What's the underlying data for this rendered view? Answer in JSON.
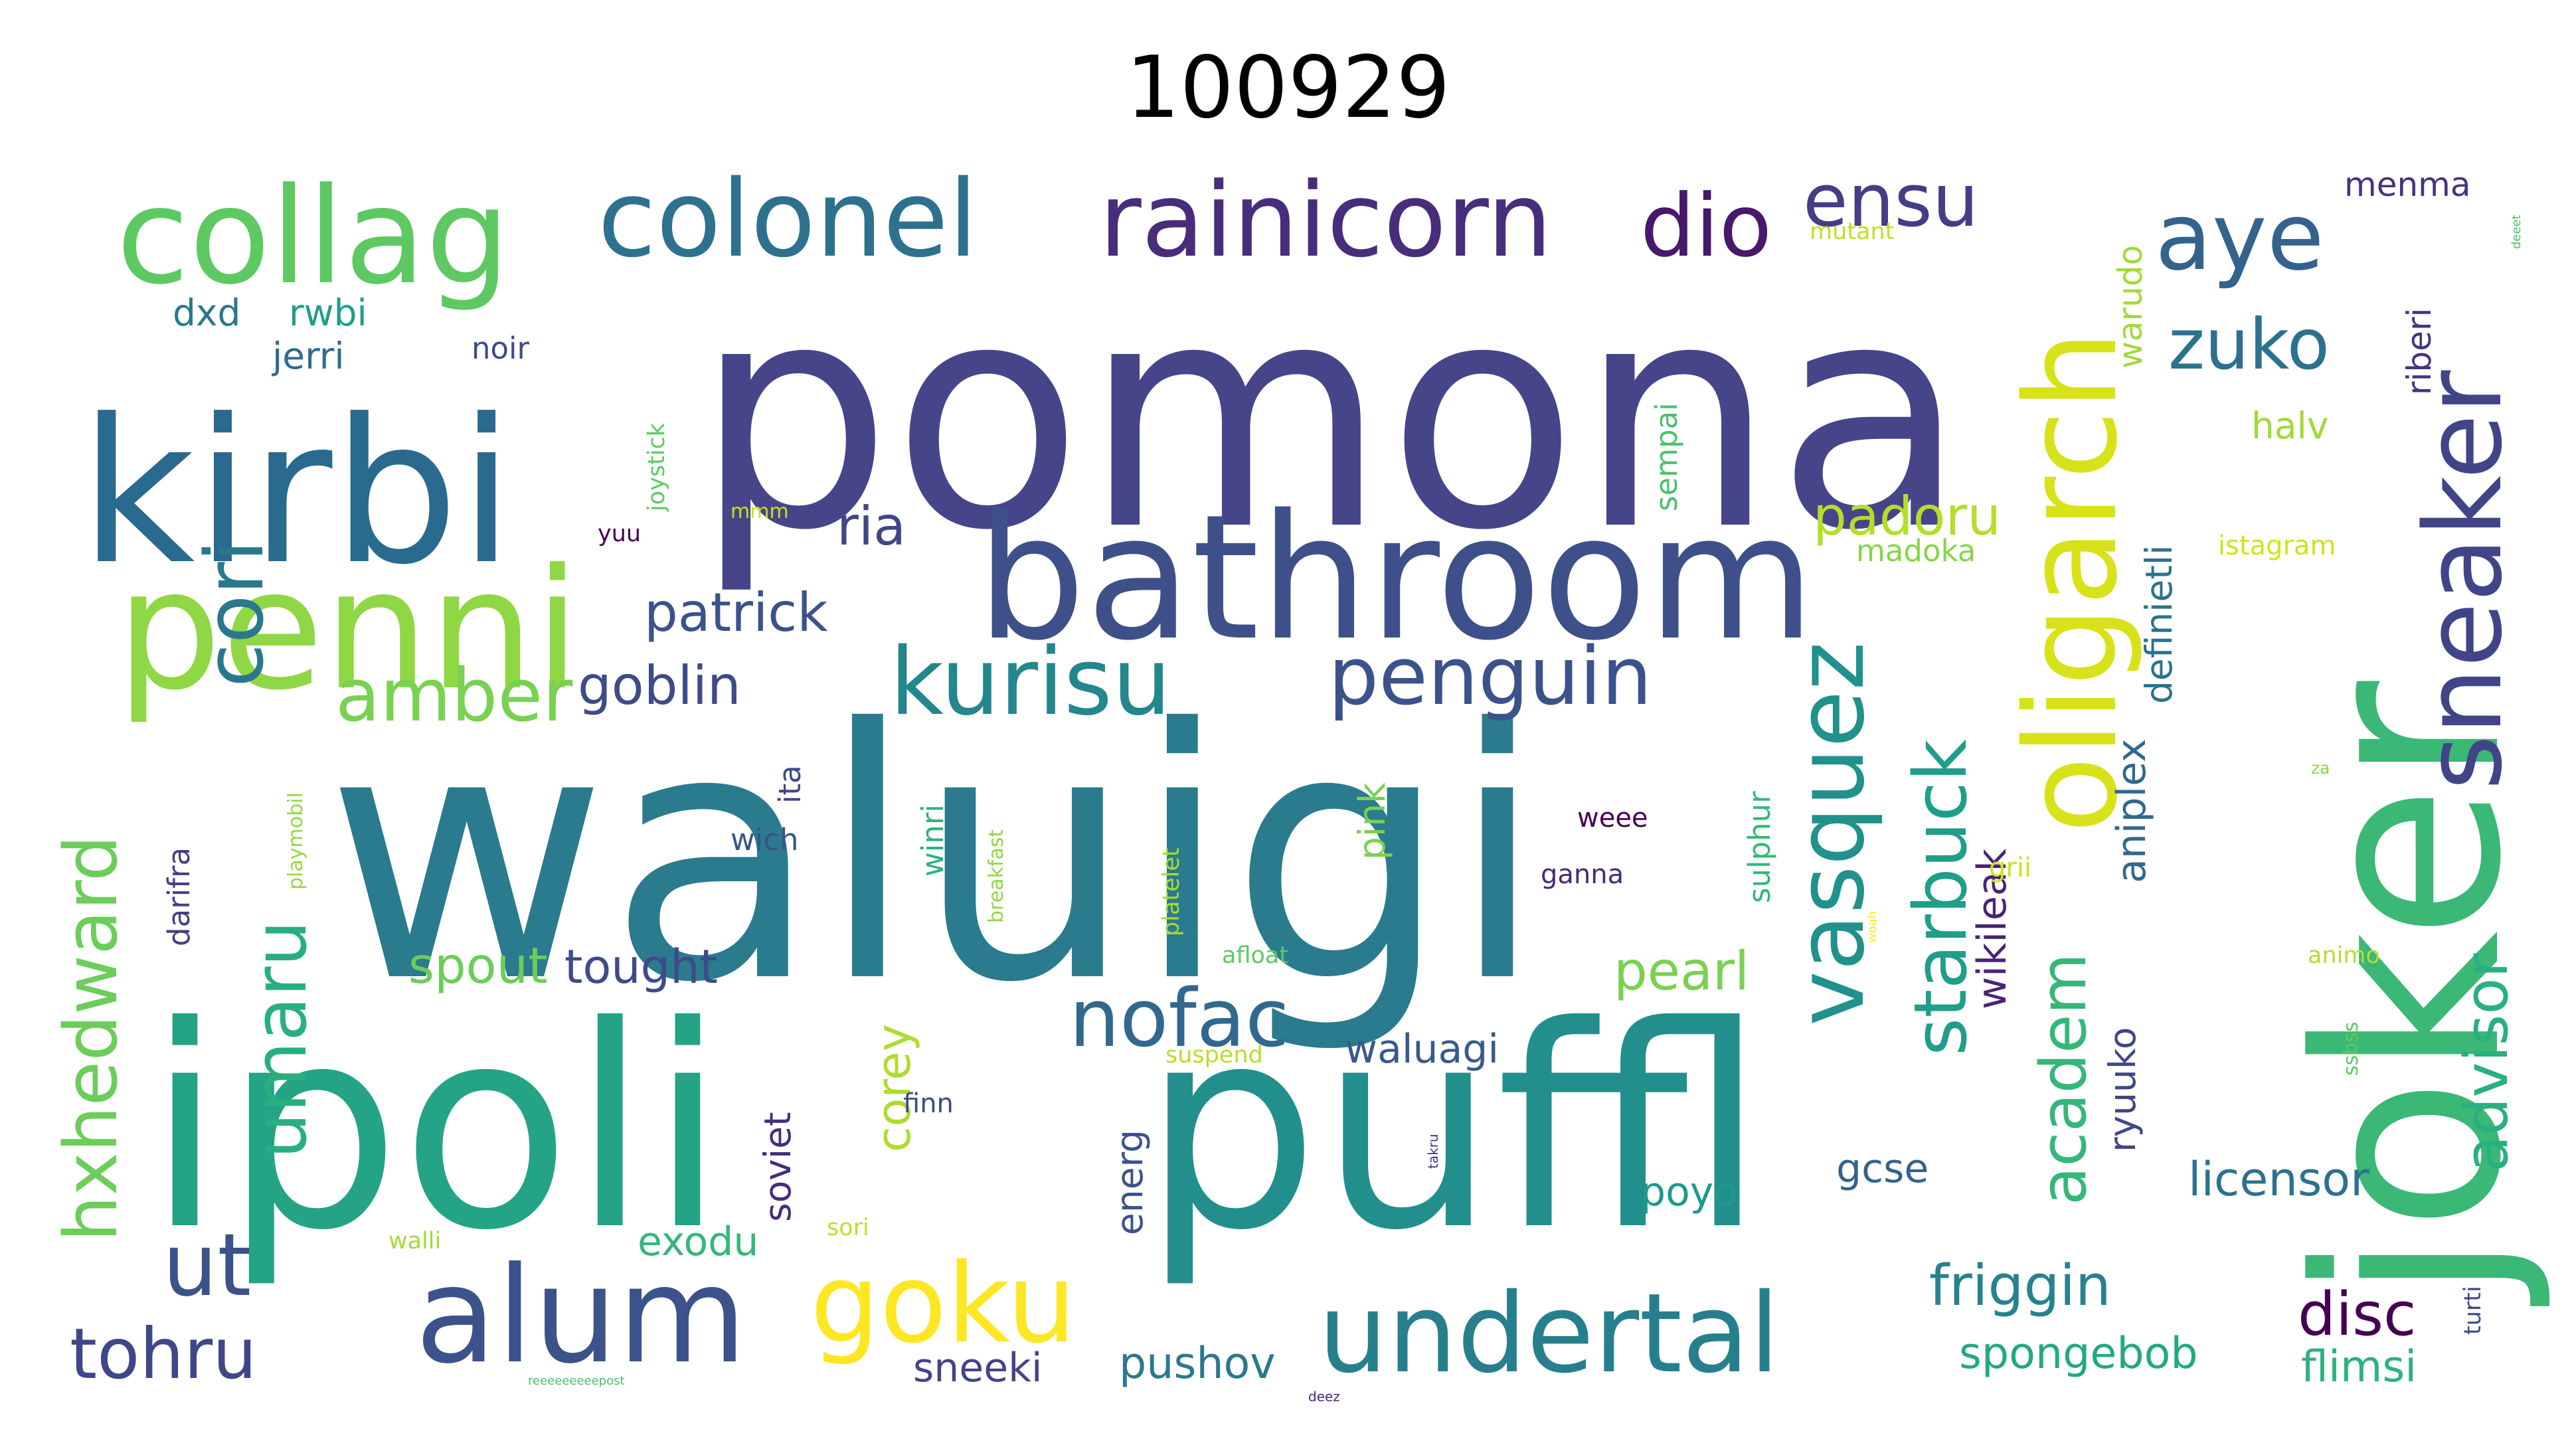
{
  "title": "100929",
  "colors": {
    "background": "#ffffff",
    "palette": [
      "#440154",
      "#46327e",
      "#365c8d",
      "#277f8e",
      "#1fa187",
      "#4ac16d",
      "#a0da39",
      "#fde725"
    ]
  },
  "words": [
    {
      "id": "pomona",
      "text": "pomona",
      "color": "#46458a"
    },
    {
      "id": "waluigi",
      "text": "waluigi",
      "color": "#2a7b8e"
    },
    {
      "id": "ipoli",
      "text": "ipoli",
      "color": "#25a386"
    },
    {
      "id": "puffl",
      "text": "puffl",
      "color": "#238f8c"
    },
    {
      "id": "joker",
      "text": "joker",
      "color": "#3bb776"
    },
    {
      "id": "kirbi",
      "text": "kirbi",
      "color": "#2a6a8e"
    },
    {
      "id": "bathroom",
      "text": "bathroom",
      "color": "#3e5089"
    },
    {
      "id": "penni",
      "text": "penni",
      "color": "#8fd744"
    },
    {
      "id": "collag",
      "text": "collag",
      "color": "#5ec962"
    },
    {
      "id": "colonel",
      "text": "colonel",
      "color": "#2d718e"
    },
    {
      "id": "rainicorn",
      "text": "rainicorn",
      "color": "#472d7b"
    },
    {
      "id": "dio",
      "text": "dio",
      "color": "#48186a"
    },
    {
      "id": "ensu",
      "text": "ensu",
      "color": "#433e85"
    },
    {
      "id": "aye",
      "text": "aye",
      "color": "#33638d"
    },
    {
      "id": "oligarch",
      "text": "oligarch",
      "color": "#d8e219"
    },
    {
      "id": "sneaker",
      "text": "sneaker",
      "color": "#414487"
    },
    {
      "id": "zuko",
      "text": "zuko",
      "color": "#2c728e"
    },
    {
      "id": "kurisu",
      "text": "kurisu",
      "color": "#24868e"
    },
    {
      "id": "penguin",
      "text": "penguin",
      "color": "#3b528b"
    },
    {
      "id": "vasquez",
      "text": "vasquez",
      "color": "#21918c"
    },
    {
      "id": "starbuck",
      "text": "starbuck",
      "color": "#1f9e89"
    },
    {
      "id": "cori",
      "text": "cori",
      "color": "#2a788e"
    },
    {
      "id": "amber",
      "text": "amber",
      "color": "#7ad151"
    },
    {
      "id": "goblin",
      "text": "goblin",
      "color": "#3e4a89"
    },
    {
      "id": "patrick",
      "text": "patrick",
      "color": "#3b528b"
    },
    {
      "id": "ria",
      "text": "ria",
      "color": "#3f4788"
    },
    {
      "id": "padoru",
      "text": "padoru",
      "color": "#b5de2b"
    },
    {
      "id": "madoka",
      "text": "madoka",
      "color": "#86d549"
    },
    {
      "id": "nofac",
      "text": "nofac",
      "color": "#31688e"
    },
    {
      "id": "goku",
      "text": "goku",
      "color": "#fde725"
    },
    {
      "id": "alum",
      "text": "alum",
      "color": "#3b528b"
    },
    {
      "id": "undertal",
      "text": "undertal",
      "color": "#277f8e"
    },
    {
      "id": "umaru",
      "text": "umaru",
      "color": "#29af7f"
    },
    {
      "id": "hxhedward",
      "text": "hxhedward",
      "color": "#6ccd5a"
    },
    {
      "id": "ut",
      "text": "ut",
      "color": "#3b528b"
    },
    {
      "id": "tohru",
      "text": "tohru",
      "color": "#3f4788"
    },
    {
      "id": "academ",
      "text": "academ",
      "color": "#35b779"
    },
    {
      "id": "advisor",
      "text": "advisor",
      "color": "#2ab07f"
    },
    {
      "id": "friggin",
      "text": "friggin",
      "color": "#26828e"
    },
    {
      "id": "disc",
      "text": "disc",
      "color": "#440154"
    },
    {
      "id": "spongebob",
      "text": "spongebob",
      "color": "#22a884"
    },
    {
      "id": "flimsi",
      "text": "flimsi",
      "color": "#2db27d"
    },
    {
      "id": "licensor",
      "text": "licensor",
      "color": "#2c728e"
    },
    {
      "id": "gcse",
      "text": "gcse",
      "color": "#33638d"
    },
    {
      "id": "poyo",
      "text": "poyo",
      "color": "#1f9a8a"
    },
    {
      "id": "pearl",
      "text": "pearl",
      "color": "#7ad151"
    },
    {
      "id": "spout",
      "text": "spout",
      "color": "#6ccd5a"
    },
    {
      "id": "tought",
      "text": "tought",
      "color": "#3e4a89"
    },
    {
      "id": "waluagi",
      "text": "waluagi",
      "color": "#38598c"
    },
    {
      "id": "exodu",
      "text": "exodu",
      "color": "#35b779"
    },
    {
      "id": "sneeki",
      "text": "sneeki",
      "color": "#414487"
    },
    {
      "id": "pushov",
      "text": "pushov",
      "color": "#2a788e"
    },
    {
      "id": "soviet",
      "text": "soviet",
      "color": "#472d7b"
    },
    {
      "id": "corey",
      "text": "corey",
      "color": "#addc30"
    },
    {
      "id": "energ",
      "text": "energ",
      "color": "#3b528b"
    },
    {
      "id": "ryuuko",
      "text": "ryuuko",
      "color": "#404688"
    },
    {
      "id": "wikileak",
      "text": "wikileak",
      "color": "#482475"
    },
    {
      "id": "aniplex",
      "text": "aniplex",
      "color": "#31688e"
    },
    {
      "id": "definietli",
      "text": "definietli",
      "color": "#2c728e"
    },
    {
      "id": "warudo",
      "text": "warudo",
      "color": "#a0da39"
    },
    {
      "id": "riberi",
      "text": "riberi",
      "color": "#46337f"
    },
    {
      "id": "menma",
      "text": "menma",
      "color": "#46327e"
    },
    {
      "id": "mutant",
      "text": "mutant",
      "color": "#c2df23"
    },
    {
      "id": "halv",
      "text": "halv",
      "color": "#a0da39"
    },
    {
      "id": "istagram",
      "text": "istagram",
      "color": "#d2e21b"
    },
    {
      "id": "pink",
      "text": "pink",
      "color": "#7ad151"
    },
    {
      "id": "sulphur",
      "text": "sulphur",
      "color": "#35b779"
    },
    {
      "id": "sempai",
      "text": "sempai",
      "color": "#4ac16d"
    },
    {
      "id": "joystick",
      "text": "joystick",
      "color": "#5ec962"
    },
    {
      "id": "noir",
      "text": "noir",
      "color": "#3e4a89"
    },
    {
      "id": "jerri",
      "text": "jerri",
      "color": "#2f6c8e"
    },
    {
      "id": "dxd",
      "text": "dxd",
      "color": "#2a788e"
    },
    {
      "id": "rwbi",
      "text": "rwbi",
      "color": "#1f9e89"
    },
    {
      "id": "yuu",
      "text": "yuu",
      "color": "#440154"
    },
    {
      "id": "mmm",
      "text": "mmm",
      "color": "#c8e020"
    },
    {
      "id": "ita",
      "text": "ita",
      "color": "#3f4788"
    },
    {
      "id": "wich",
      "text": "wich",
      "color": "#3b528b"
    },
    {
      "id": "winri",
      "text": "winri",
      "color": "#2db27d"
    },
    {
      "id": "breakfast",
      "text": "breakfast",
      "color": "#90d743"
    },
    {
      "id": "platelet",
      "text": "platelet",
      "color": "#a8db34"
    },
    {
      "id": "darifra",
      "text": "darifra",
      "color": "#433e85"
    },
    {
      "id": "playmobil",
      "text": "playmobil",
      "color": "#95d840"
    },
    {
      "id": "weee",
      "text": "weee",
      "color": "#440154"
    },
    {
      "id": "ganna",
      "text": "ganna",
      "color": "#482878"
    },
    {
      "id": "grii",
      "text": "grii",
      "color": "#d0e11c"
    },
    {
      "id": "afloat",
      "text": "afloat",
      "color": "#5ec962"
    },
    {
      "id": "suspend",
      "text": "suspend",
      "color": "#b8de29"
    },
    {
      "id": "finn",
      "text": "finn",
      "color": "#3e4a89"
    },
    {
      "id": "sori",
      "text": "sori",
      "color": "#bddf26"
    },
    {
      "id": "walli",
      "text": "walli",
      "color": "#a5db36"
    },
    {
      "id": "reeeeeepost",
      "text": "reeeeeeeeepost",
      "color": "#4ac16d"
    },
    {
      "id": "deez",
      "text": "deez",
      "color": "#482878"
    },
    {
      "id": "animo",
      "text": "animo",
      "color": "#b5de2b"
    },
    {
      "id": "ssbss",
      "text": "ssbss",
      "color": "#5ec962"
    },
    {
      "id": "turti",
      "text": "turti",
      "color": "#3e4a89"
    },
    {
      "id": "za",
      "text": "za",
      "color": "#8bd646"
    },
    {
      "id": "woah",
      "text": "woah",
      "color": "#fde725"
    },
    {
      "id": "deeet",
      "text": "deeet",
      "color": "#4ac16d"
    },
    {
      "id": "takru",
      "text": "takru",
      "color": "#46327e"
    }
  ]
}
